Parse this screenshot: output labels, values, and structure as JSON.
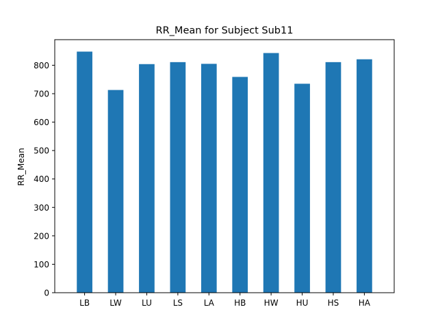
{
  "chart_data": {
    "type": "bar",
    "title": "RR_Mean for Subject Sub11",
    "xlabel": "",
    "ylabel": "RR_Mean",
    "categories": [
      "LB",
      "LW",
      "LU",
      "LS",
      "LA",
      "HB",
      "HW",
      "HU",
      "HS",
      "HA"
    ],
    "values": [
      848,
      713,
      804,
      811,
      805,
      759,
      843,
      735,
      811,
      821
    ],
    "ylim": [
      0,
      890
    ],
    "yticks": [
      0,
      100,
      200,
      300,
      400,
      500,
      600,
      700,
      800
    ],
    "grid": false,
    "bar_color": "#1f77b4"
  }
}
